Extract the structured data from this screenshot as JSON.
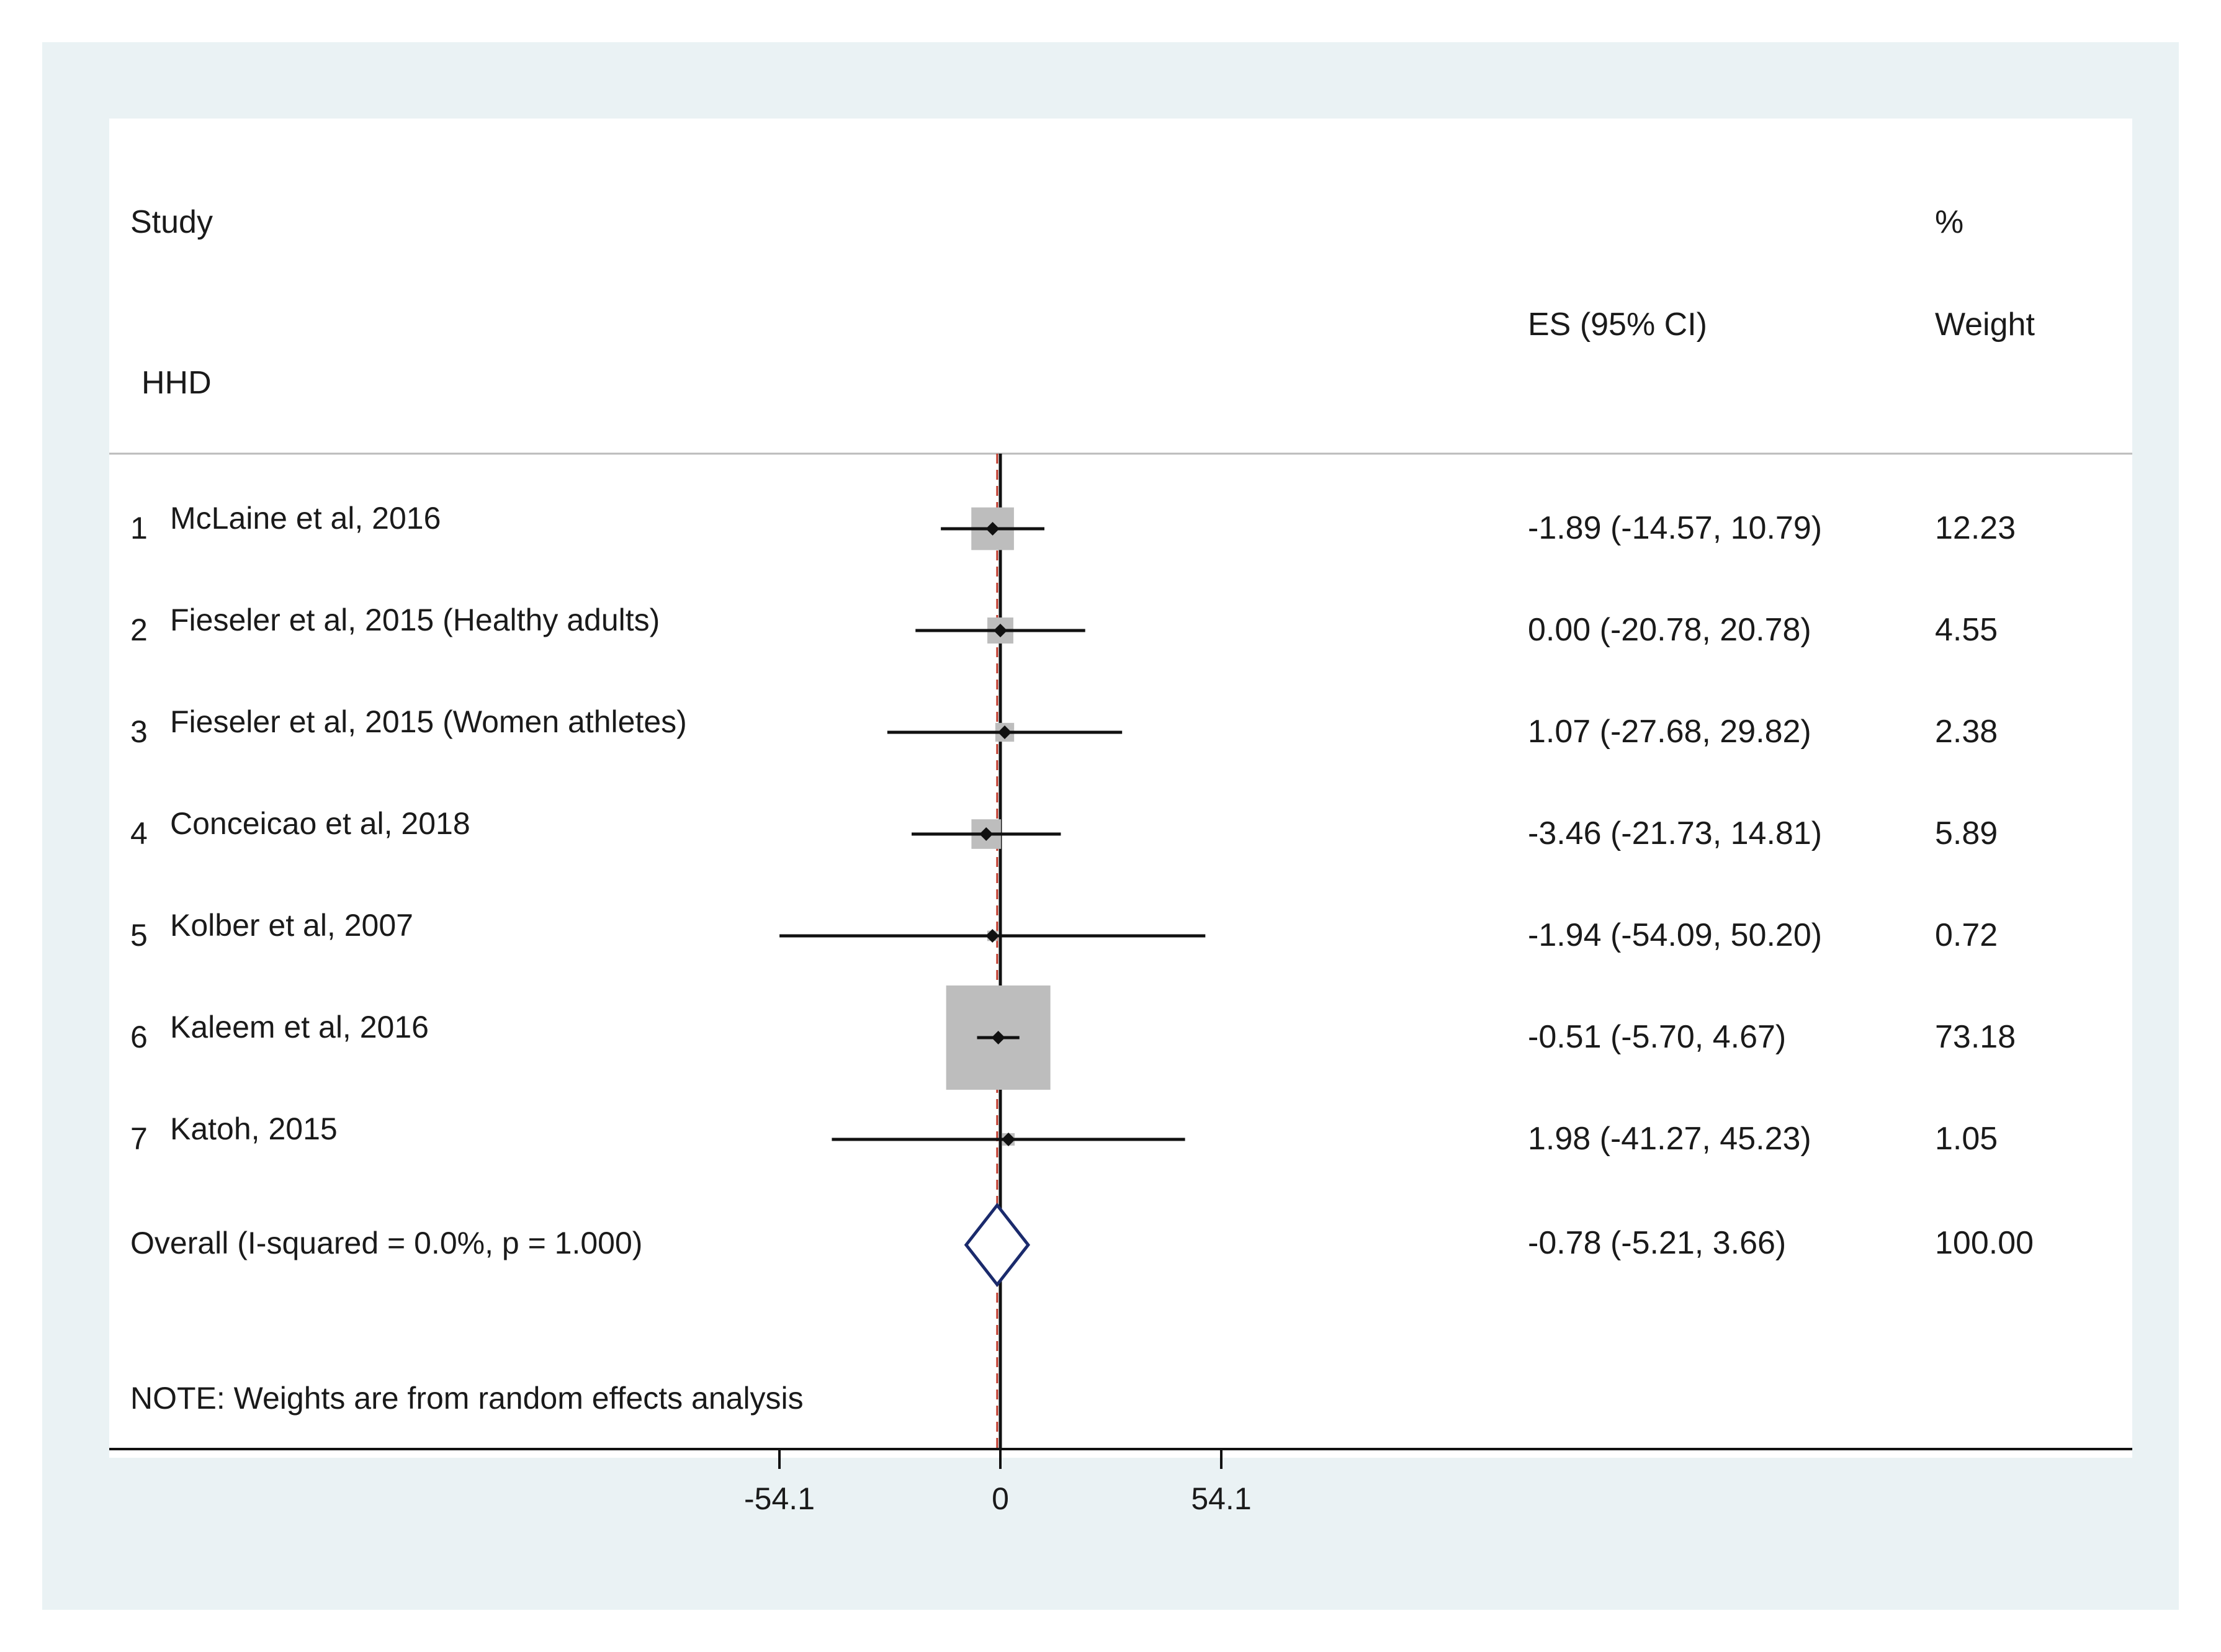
{
  "chart_data": {
    "type": "forest",
    "header": {
      "study": "Study",
      "percent": "%",
      "es": "ES (95% CI)",
      "weight": "Weight"
    },
    "subgroup_label": "HHD",
    "studies": [
      {
        "index": "1",
        "name": "McLaine et al, 2016",
        "es": -1.89,
        "lo": -14.57,
        "hi": 10.79,
        "weight": 12.23,
        "es_text": "-1.89 (-14.57, 10.79)",
        "weight_text": "12.23"
      },
      {
        "index": "2",
        "name": "Fieseler et al, 2015 (Healthy adults)",
        "es": 0.0,
        "lo": -20.78,
        "hi": 20.78,
        "weight": 4.55,
        "es_text": "0.00 (-20.78, 20.78)",
        "weight_text": "4.55"
      },
      {
        "index": "3",
        "name": "Fieseler et al, 2015 (Women athletes)",
        "es": 1.07,
        "lo": -27.68,
        "hi": 29.82,
        "weight": 2.38,
        "es_text": "1.07 (-27.68, 29.82)",
        "weight_text": "2.38"
      },
      {
        "index": "4",
        "name": "Conceicao et al, 2018",
        "es": -3.46,
        "lo": -21.73,
        "hi": 14.81,
        "weight": 5.89,
        "es_text": "-3.46 (-21.73, 14.81)",
        "weight_text": "5.89"
      },
      {
        "index": "5",
        "name": "Kolber et al, 2007",
        "es": -1.94,
        "lo": -54.09,
        "hi": 50.2,
        "weight": 0.72,
        "es_text": "-1.94 (-54.09, 50.20)",
        "weight_text": "0.72"
      },
      {
        "index": "6",
        "name": "Kaleem et al, 2016",
        "es": -0.51,
        "lo": -5.7,
        "hi": 4.67,
        "weight": 73.18,
        "es_text": "-0.51 (-5.70, 4.67)",
        "weight_text": "73.18"
      },
      {
        "index": "7",
        "name": "Katoh, 2015",
        "es": 1.98,
        "lo": -41.27,
        "hi": 45.23,
        "weight": 1.05,
        "es_text": "1.98 (-41.27, 45.23)",
        "weight_text": "1.05"
      }
    ],
    "overall": {
      "label": "Overall  (I-squared = 0.0%, p = 1.000)",
      "es": -0.78,
      "lo": -5.21,
      "hi": 3.66,
      "es_text": "-0.78 (-5.21, 3.66)",
      "weight_text": "100.00"
    },
    "note": "NOTE: Weights are from random effects analysis",
    "x_ticks": [
      -54.1,
      0,
      54.1
    ],
    "x_tick_labels": [
      "-54.1",
      "0",
      "54.1"
    ],
    "null_line": 0,
    "colors": {
      "frame_bg": "#eaf2f4",
      "plot_bg": "#ffffff",
      "box": "#bdbdbd",
      "line": "#111111",
      "diamond": "#1a2a6c",
      "overall_line": "#c0392b"
    }
  }
}
